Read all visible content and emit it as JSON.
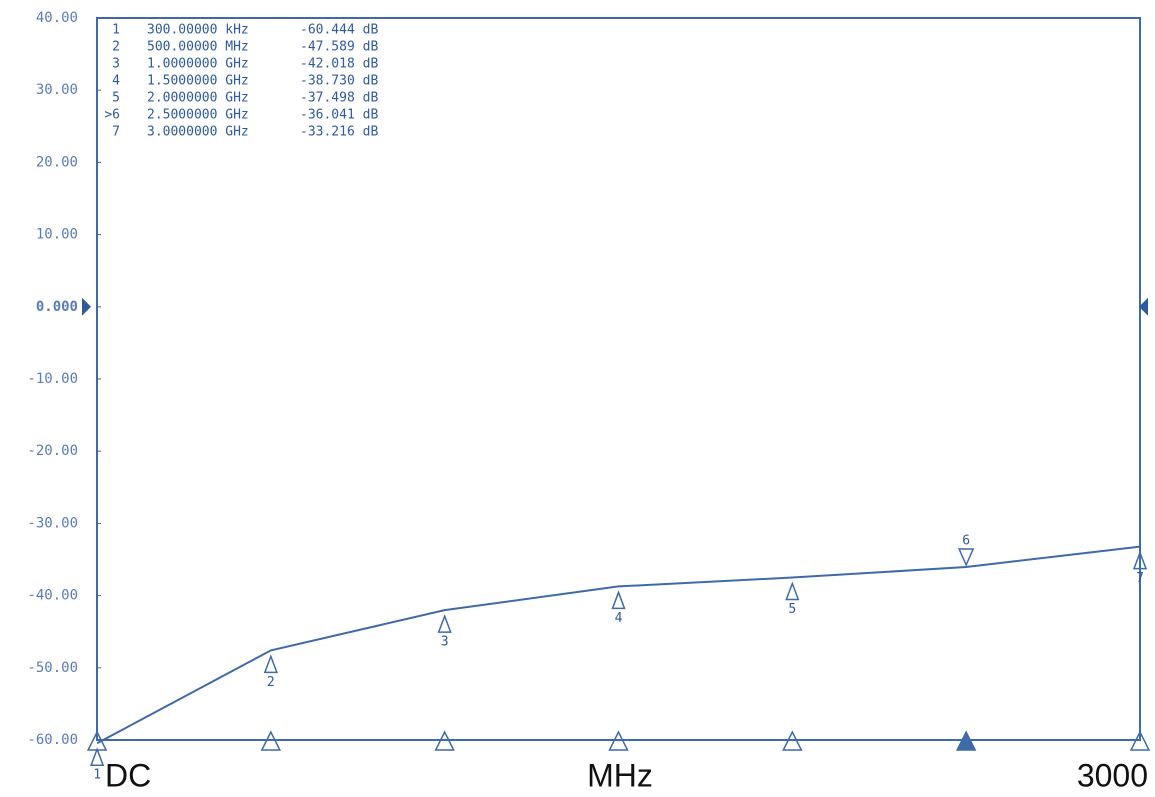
{
  "chart_data": {
    "type": "line",
    "xlim": [
      0,
      3000
    ],
    "xticks": [
      {
        "value": 0,
        "label": "DC"
      },
      3000
    ],
    "x_label": "MHz",
    "ylim": [
      -60,
      40
    ],
    "yticks": [
      {
        "value": 40,
        "label": "40.00"
      },
      {
        "value": 30,
        "label": "30.00"
      },
      {
        "value": 20,
        "label": "20.00"
      },
      {
        "value": 10,
        "label": "10.00"
      },
      {
        "value": 0,
        "label": "0.000"
      },
      {
        "value": -10,
        "label": "-10.00"
      },
      {
        "value": -20,
        "label": "-20.00"
      },
      {
        "value": -30,
        "label": "-30.00"
      },
      {
        "value": -40,
        "label": "-40.00"
      },
      {
        "value": -50,
        "label": "-50.00"
      },
      {
        "value": -60,
        "label": "-60.00"
      }
    ],
    "series": [
      {
        "color": "#3f6aa8",
        "x": [
          0.3,
          500,
          1000,
          1500,
          2000,
          2500,
          3000
        ],
        "x_labels": [
          "300.00000 kHz",
          "500.00000 MHz",
          "1.0000000 GHz",
          "1.5000000 GHz",
          "2.0000000 GHz",
          "2.5000000 GHz",
          "3.0000000 GHz"
        ],
        "values": [
          -60.444,
          -47.589,
          -42.018,
          -38.73,
          -37.498,
          -36.041,
          -33.216
        ],
        "value_labels": [
          "-60.444 dB",
          "-47.589 dB",
          "-42.018 dB",
          "-38.730 dB",
          "-37.498 dB",
          "-36.041 dB",
          "-33.216 dB"
        ],
        "marker_labels": [
          "1",
          "2",
          "3",
          "4",
          "5",
          "6",
          "7"
        ],
        "marker_table_labels": [
          "1",
          "2",
          "3",
          "4",
          "5",
          ">6",
          "7"
        ]
      }
    ],
    "active_marker": 6
  }
}
